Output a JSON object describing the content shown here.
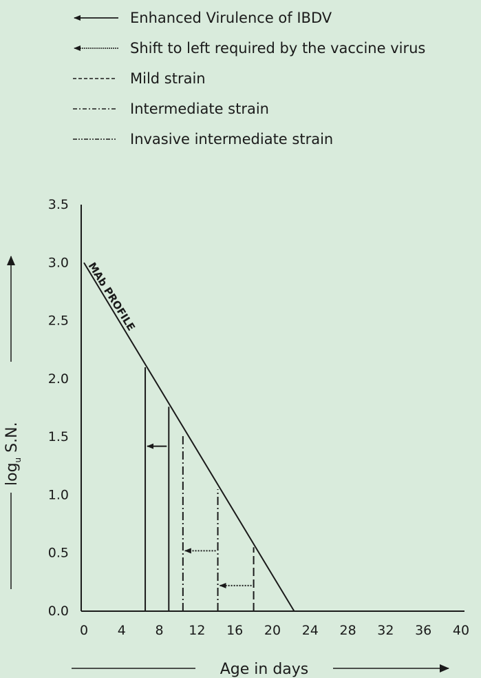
{
  "chart_data": {
    "type": "line",
    "title": "",
    "xlabel": "Age in days",
    "ylabel": "log",
    "ylabel_subscript": "u",
    "ylabel_suffix": " S.N.",
    "xlim": [
      0,
      40
    ],
    "ylim": [
      0.0,
      3.5
    ],
    "x_ticks": [
      "0",
      "4",
      "8",
      "12",
      "16",
      "20",
      "24",
      "28",
      "32",
      "36",
      "40"
    ],
    "y_ticks": [
      "0.0",
      "0.5",
      "1.0",
      "1.5",
      "2.0",
      "2.5",
      "3.0",
      "3.5"
    ],
    "grid": false,
    "legend_position": "top",
    "legend": [
      {
        "label": "Enhanced Virulence of IBDV",
        "style": "arrow-solid"
      },
      {
        "label": "Shift to left required by the vaccine virus",
        "style": "arrow-dotted"
      },
      {
        "label": "Mild strain",
        "style": "dashed"
      },
      {
        "label": "Intermediate strain",
        "style": "dashdot"
      },
      {
        "label": "Invasive intermediate strain",
        "style": "dashdotdot"
      }
    ],
    "series": [
      {
        "name": "MAb PROFILE",
        "x": [
          0,
          22.3
        ],
        "y": [
          3.0,
          0.0
        ]
      }
    ],
    "vertical_lines": [
      {
        "x": 6.5,
        "y_top": 2.1,
        "style": "solid"
      },
      {
        "x": 9.0,
        "y_top": 1.76,
        "style": "solid"
      },
      {
        "x": 10.5,
        "y_top": 1.52,
        "style": "dashdot"
      },
      {
        "x": 14.2,
        "y_top": 1.05,
        "style": "dashdot"
      },
      {
        "x": 18.0,
        "y_top": 0.55,
        "style": "dashed"
      }
    ],
    "arrows": [
      {
        "from_x": 9.0,
        "to_x": 6.5,
        "y": 1.42,
        "style": "solid"
      },
      {
        "from_x": 14.2,
        "to_x": 10.5,
        "y": 0.52,
        "style": "dotted"
      },
      {
        "from_x": 18.0,
        "to_x": 14.2,
        "y": 0.22,
        "style": "dotted"
      }
    ]
  }
}
